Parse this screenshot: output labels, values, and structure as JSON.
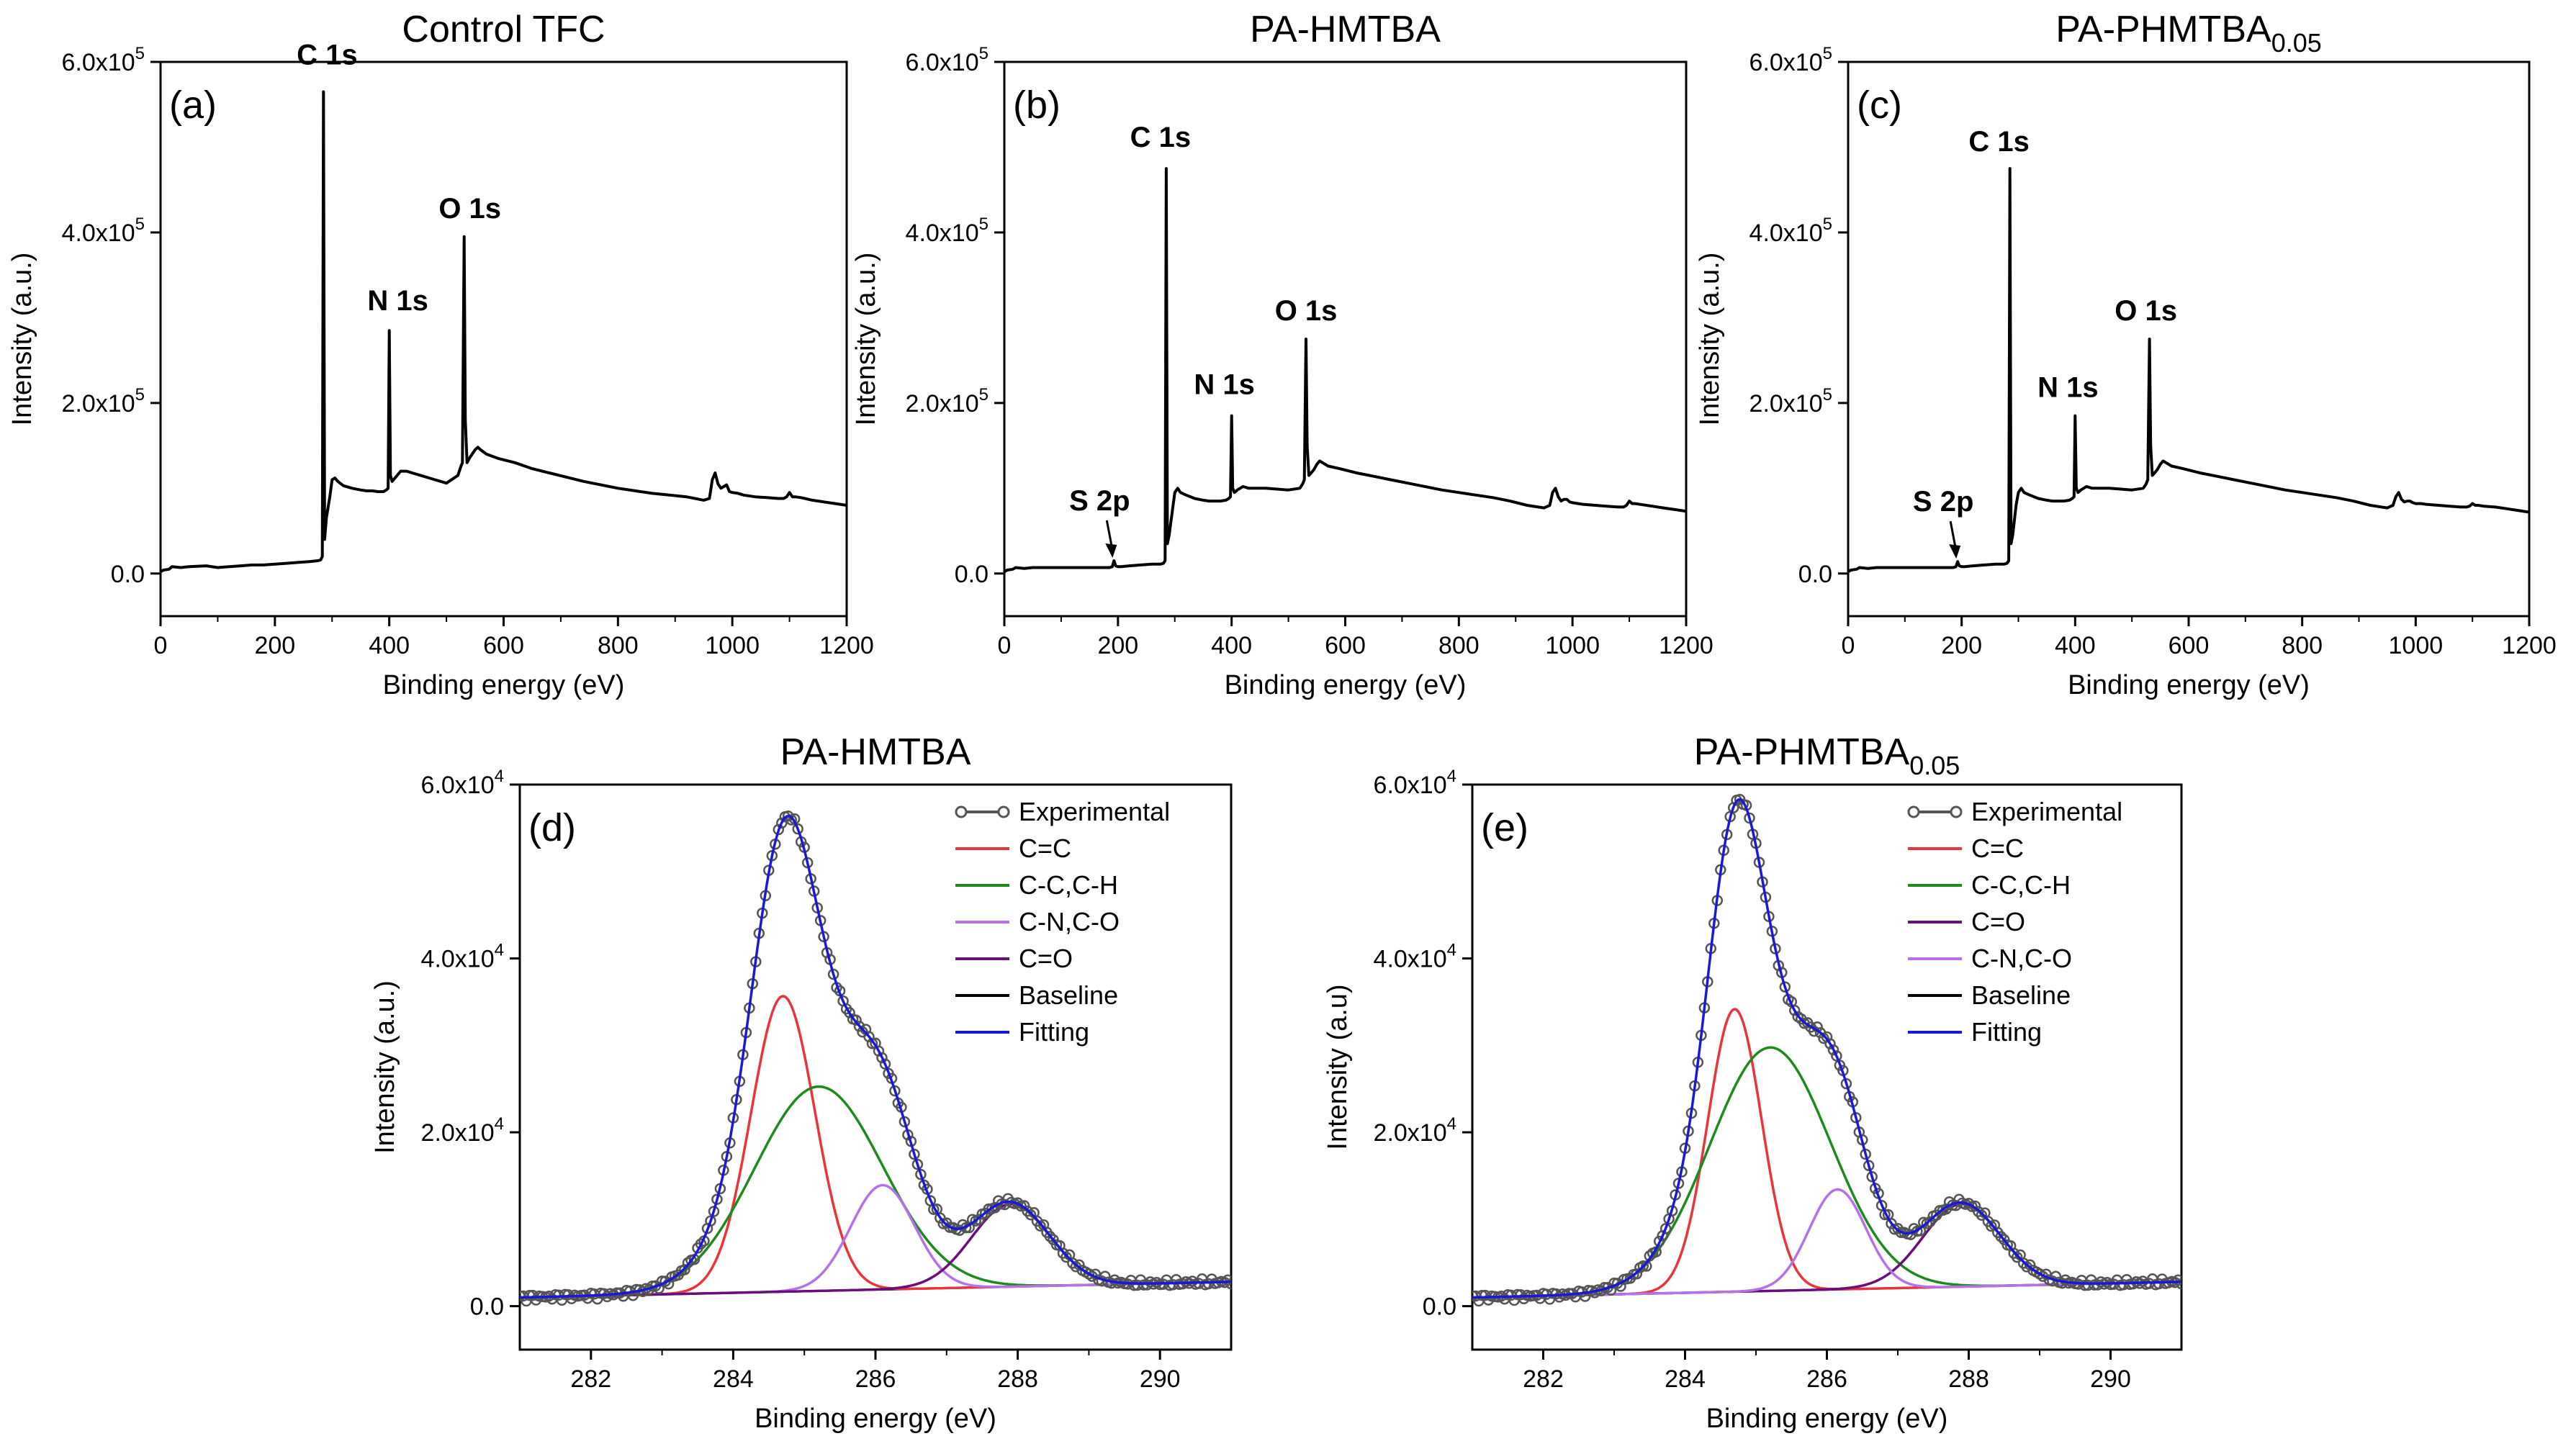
{
  "colors": {
    "spectrum": "#000000",
    "experimental": "#555555",
    "cc_aromatic": "#e8343a",
    "cc_ch": "#1e8a1e",
    "cn_co": "#b472e6",
    "c_o": "#6a0f7a",
    "baseline": "#000000",
    "fitting": "#1a1ad6"
  },
  "chart_data": [
    {
      "id": "a",
      "type": "line",
      "panel_label": "(a)",
      "title": "Control TFC",
      "xlabel": "Binding energy (eV)",
      "ylabel": "Intensity (a.u.)",
      "xlim": [
        0,
        1200
      ],
      "ylim": [
        -50000,
        600000
      ],
      "xticks": [
        "0",
        "200",
        "400",
        "600",
        "800",
        "1000",
        "1200"
      ],
      "yticks": [
        {
          "v": 0,
          "mant": "0.0",
          "exp": ""
        },
        {
          "v": 200000,
          "mant": "2.0x10",
          "exp": "5"
        },
        {
          "v": 400000,
          "mant": "4.0x10",
          "exp": "5"
        },
        {
          "v": 600000,
          "mant": "6.0x10",
          "exp": "5"
        }
      ],
      "series": [
        {
          "name": "Survey",
          "x": [
            0,
            5,
            15,
            20,
            35,
            50,
            80,
            100,
            120,
            140,
            160,
            180,
            200,
            220,
            240,
            260,
            275,
            280,
            283,
            285,
            287,
            290,
            296,
            300,
            305,
            310,
            320,
            335,
            350,
            360,
            370,
            380,
            390,
            395,
            398,
            400,
            402,
            405,
            410,
            420,
            430,
            440,
            460,
            480,
            500,
            520,
            525,
            528,
            531,
            533,
            536,
            540,
            545,
            550,
            555,
            560,
            570,
            590,
            620,
            650,
            680,
            710,
            740,
            770,
            800,
            830,
            860,
            890,
            920,
            950,
            960,
            965,
            970,
            975,
            980,
            985,
            990,
            995,
            1000,
            1010,
            1020,
            1040,
            1060,
            1080,
            1090,
            1095,
            1100,
            1105,
            1110,
            1120,
            1140,
            1160,
            1180,
            1200
          ],
          "y": [
            2000,
            4000,
            5000,
            8000,
            7000,
            8000,
            9000,
            7000,
            8000,
            9000,
            10000,
            10000,
            11000,
            12000,
            13000,
            14000,
            15000,
            16000,
            20000,
            565000,
            40000,
            65000,
            90000,
            110000,
            112000,
            108000,
            103000,
            100000,
            98000,
            97000,
            97000,
            96000,
            96000,
            98000,
            100000,
            285000,
            115000,
            108000,
            112000,
            120000,
            120000,
            118000,
            114000,
            110000,
            106000,
            115000,
            125000,
            130000,
            395000,
            180000,
            130000,
            135000,
            140000,
            145000,
            148000,
            145000,
            140000,
            135000,
            130000,
            123000,
            118000,
            113000,
            108000,
            104000,
            100000,
            97000,
            94000,
            92000,
            90000,
            86000,
            88000,
            110000,
            118000,
            105000,
            100000,
            102000,
            104000,
            96000,
            95000,
            94000,
            92000,
            90000,
            89000,
            88000,
            88000,
            90000,
            95000,
            90000,
            90000,
            89000,
            86000,
            84000,
            82000,
            80000
          ]
        }
      ],
      "annotations": [
        {
          "text": "C 1s",
          "x": 285,
          "y": 565000,
          "dx": 5,
          "dy": -38
        },
        {
          "text": "N 1s",
          "x": 400,
          "y": 285000,
          "dx": 12,
          "dy": -28
        },
        {
          "text": "O 1s",
          "x": 531,
          "y": 395000,
          "dx": 8,
          "dy": -26
        }
      ]
    },
    {
      "id": "b",
      "type": "line",
      "panel_label": "(b)",
      "title": "PA-HMTBA",
      "xlabel": "Binding energy (eV)",
      "ylabel": "Intensity (a.u.)",
      "xlim": [
        0,
        1200
      ],
      "ylim": [
        -50000,
        600000
      ],
      "xticks": [
        "0",
        "200",
        "400",
        "600",
        "800",
        "1000",
        "1200"
      ],
      "yticks": [
        {
          "v": 0,
          "mant": "0.0",
          "exp": ""
        },
        {
          "v": 200000,
          "mant": "2.0x10",
          "exp": "5"
        },
        {
          "v": 400000,
          "mant": "4.0x10",
          "exp": "5"
        },
        {
          "v": 600000,
          "mant": "6.0x10",
          "exp": "5"
        }
      ],
      "series": [
        {
          "name": "Survey",
          "x": [
            0,
            5,
            15,
            20,
            35,
            50,
            80,
            100,
            120,
            140,
            160,
            175,
            185,
            190,
            193,
            196,
            200,
            205,
            220,
            240,
            260,
            275,
            280,
            283,
            285,
            287,
            290,
            296,
            300,
            305,
            310,
            320,
            335,
            350,
            360,
            370,
            380,
            390,
            395,
            398,
            400,
            402,
            405,
            410,
            420,
            430,
            440,
            460,
            480,
            500,
            520,
            525,
            528,
            531,
            533,
            536,
            540,
            545,
            550,
            555,
            560,
            570,
            590,
            620,
            650,
            680,
            710,
            740,
            770,
            800,
            830,
            860,
            890,
            920,
            950,
            960,
            965,
            970,
            975,
            980,
            985,
            990,
            995,
            1000,
            1010,
            1020,
            1040,
            1060,
            1080,
            1090,
            1095,
            1100,
            1105,
            1110,
            1120,
            1140,
            1160,
            1180,
            1200
          ],
          "y": [
            2000,
            4000,
            5000,
            7000,
            6000,
            7000,
            7000,
            7000,
            7000,
            7000,
            7000,
            7000,
            7000,
            8000,
            15000,
            9000,
            8000,
            8000,
            9000,
            10000,
            11000,
            11000,
            12000,
            15000,
            475000,
            35000,
            45000,
            75000,
            95000,
            100000,
            95000,
            92000,
            88000,
            86000,
            85000,
            85000,
            85000,
            86000,
            88000,
            90000,
            185000,
            100000,
            95000,
            98000,
            102000,
            100000,
            100000,
            100000,
            99000,
            98000,
            100000,
            105000,
            110000,
            275000,
            150000,
            115000,
            118000,
            122000,
            128000,
            132000,
            130000,
            126000,
            123000,
            118000,
            114000,
            110000,
            106000,
            102000,
            98000,
            95000,
            92000,
            89000,
            85000,
            80000,
            77000,
            80000,
            95000,
            100000,
            90000,
            85000,
            87000,
            87000,
            84000,
            83000,
            82000,
            81000,
            80000,
            79000,
            78000,
            78000,
            80000,
            85000,
            82000,
            82000,
            81000,
            79000,
            77000,
            75000,
            73000
          ]
        }
      ],
      "annotations": [
        {
          "text": "C 1s",
          "x": 285,
          "y": 475000,
          "dx": -8,
          "dy": -30
        },
        {
          "text": "N 1s",
          "x": 400,
          "y": 185000,
          "dx": -10,
          "dy": -30
        },
        {
          "text": "O 1s",
          "x": 531,
          "y": 275000,
          "dx": 0,
          "dy": -26
        },
        {
          "text": "S 2p",
          "x": 193,
          "y": 15000,
          "dx": -20,
          "dy": -70,
          "arrow": true
        }
      ]
    },
    {
      "id": "c",
      "type": "line",
      "panel_label": "(c)",
      "title": "PA-PHMTBA",
      "title_sub": "0.05",
      "xlabel": "Binding energy (eV)",
      "ylabel": "Intensity (a.u.)",
      "xlim": [
        0,
        1200
      ],
      "ylim": [
        -50000,
        600000
      ],
      "xticks": [
        "0",
        "200",
        "400",
        "600",
        "800",
        "1000",
        "1200"
      ],
      "yticks": [
        {
          "v": 0,
          "mant": "0.0",
          "exp": ""
        },
        {
          "v": 200000,
          "mant": "2.0x10",
          "exp": "5"
        },
        {
          "v": 400000,
          "mant": "4.0x10",
          "exp": "5"
        },
        {
          "v": 600000,
          "mant": "6.0x10",
          "exp": "5"
        }
      ],
      "series": [
        {
          "name": "Survey",
          "x": [
            0,
            5,
            15,
            20,
            35,
            50,
            80,
            100,
            120,
            140,
            160,
            175,
            185,
            190,
            193,
            196,
            200,
            205,
            220,
            240,
            260,
            275,
            280,
            283,
            285,
            287,
            290,
            296,
            300,
            305,
            310,
            320,
            335,
            350,
            360,
            370,
            380,
            390,
            395,
            398,
            400,
            402,
            405,
            410,
            420,
            430,
            440,
            460,
            480,
            500,
            520,
            525,
            528,
            531,
            533,
            536,
            540,
            545,
            550,
            555,
            560,
            570,
            590,
            620,
            650,
            680,
            710,
            740,
            770,
            800,
            830,
            860,
            890,
            920,
            950,
            960,
            965,
            970,
            975,
            980,
            985,
            990,
            995,
            1000,
            1010,
            1020,
            1040,
            1060,
            1080,
            1090,
            1095,
            1100,
            1105,
            1110,
            1120,
            1140,
            1160,
            1180,
            1200
          ],
          "y": [
            2000,
            4000,
            5000,
            7000,
            6000,
            7000,
            7000,
            7000,
            7000,
            7000,
            7000,
            7000,
            7000,
            8000,
            14000,
            9000,
            8000,
            8000,
            9000,
            10000,
            11000,
            11000,
            12000,
            15000,
            475000,
            35000,
            45000,
            80000,
            95000,
            100000,
            95000,
            92000,
            88000,
            86000,
            85000,
            85000,
            85000,
            86000,
            88000,
            90000,
            185000,
            100000,
            95000,
            98000,
            102000,
            100000,
            100000,
            100000,
            99000,
            98000,
            100000,
            105000,
            110000,
            275000,
            150000,
            115000,
            118000,
            122000,
            128000,
            132000,
            130000,
            126000,
            123000,
            118000,
            114000,
            110000,
            106000,
            102000,
            98000,
            95000,
            92000,
            89000,
            85000,
            80000,
            77000,
            80000,
            90000,
            95000,
            87000,
            84000,
            85000,
            85000,
            83000,
            82000,
            82000,
            81000,
            80000,
            79000,
            78000,
            78000,
            79000,
            82000,
            80000,
            80000,
            79000,
            78000,
            76000,
            74000,
            72000
          ]
        }
      ],
      "annotations": [
        {
          "text": "C 1s",
          "x": 285,
          "y": 475000,
          "dx": -15,
          "dy": -24
        },
        {
          "text": "N 1s",
          "x": 400,
          "y": 185000,
          "dx": -10,
          "dy": -26
        },
        {
          "text": "O 1s",
          "x": 531,
          "y": 275000,
          "dx": -5,
          "dy": -26
        },
        {
          "text": "S 2p",
          "x": 193,
          "y": 14000,
          "dx": -20,
          "dy": -70,
          "arrow": true
        }
      ]
    },
    {
      "id": "d",
      "type": "line",
      "panel_label": "(d)",
      "title": "PA-HMTBA",
      "xlabel": "Binding energy (eV)",
      "ylabel": "Intensity (a.u.)",
      "xlim": [
        281,
        291
      ],
      "ylim": [
        -5000,
        60000
      ],
      "xticks": [
        "282",
        "284",
        "286",
        "288",
        "290"
      ],
      "yticks": [
        {
          "v": 0,
          "mant": "0.0",
          "exp": ""
        },
        {
          "v": 20000,
          "mant": "2.0x10",
          "exp": "4"
        },
        {
          "v": 40000,
          "mant": "4.0x10",
          "exp": "4"
        },
        {
          "v": 60000,
          "mant": "6.0x10",
          "exp": "4"
        }
      ],
      "baseline": [
        1000,
        2800
      ],
      "components": [
        {
          "name": "C=C",
          "color_key": "cc_aromatic",
          "center": 284.7,
          "amp": 34000,
          "sigma": 0.45
        },
        {
          "name": "C-C,C-H",
          "color_key": "cc_ch",
          "center": 285.2,
          "amp": 23500,
          "sigma": 0.9
        },
        {
          "name": "C-N,C-O",
          "color_key": "cn_co",
          "center": 286.1,
          "amp": 12000,
          "sigma": 0.45
        },
        {
          "name": "C=O",
          "color_key": "c_o",
          "center": 287.9,
          "amp": 9500,
          "sigma": 0.55
        }
      ],
      "legend": [
        "Experimental",
        "C=C",
        "C-C,C-H",
        "C-N,C-O",
        "C=O",
        "Baseline",
        "Fitting"
      ],
      "legend_keys": [
        "experimental",
        "cc_aromatic",
        "cc_ch",
        "cn_co",
        "c_o",
        "baseline",
        "fitting"
      ]
    },
    {
      "id": "e",
      "type": "line",
      "panel_label": "(e)",
      "title": "PA-PHMTBA",
      "title_sub": "0.05",
      "xlabel": "Binding energy (eV)",
      "ylabel": "Intensity (a.u)",
      "xlim": [
        281,
        291
      ],
      "ylim": [
        -5000,
        60000
      ],
      "xticks": [
        "282",
        "284",
        "286",
        "288",
        "290"
      ],
      "yticks": [
        {
          "v": 0,
          "mant": "0.0",
          "exp": ""
        },
        {
          "v": 20000,
          "mant": "2.0x10",
          "exp": "4"
        },
        {
          "v": 40000,
          "mant": "4.0x10",
          "exp": "4"
        },
        {
          "v": 60000,
          "mant": "6.0x10",
          "exp": "4"
        }
      ],
      "baseline": [
        1000,
        2800
      ],
      "components": [
        {
          "name": "C=C",
          "color_key": "cc_aromatic",
          "center": 284.7,
          "amp": 32500,
          "sigma": 0.38
        },
        {
          "name": "C-C,C-H",
          "color_key": "cc_ch",
          "center": 285.2,
          "amp": 28000,
          "sigma": 0.85
        },
        {
          "name": "C=O",
          "color_key": "c_o",
          "center": 287.9,
          "amp": 9500,
          "sigma": 0.55
        },
        {
          "name": "C-N,C-O",
          "color_key": "cn_co",
          "center": 286.15,
          "amp": 11500,
          "sigma": 0.4
        }
      ],
      "legend": [
        "Experimental",
        "C=C",
        "C-C,C-H",
        "C=O",
        "C-N,C-O",
        "Baseline",
        "Fitting"
      ],
      "legend_keys": [
        "experimental",
        "cc_aromatic",
        "cc_ch",
        "c_o",
        "cn_co",
        "baseline",
        "fitting"
      ]
    }
  ]
}
